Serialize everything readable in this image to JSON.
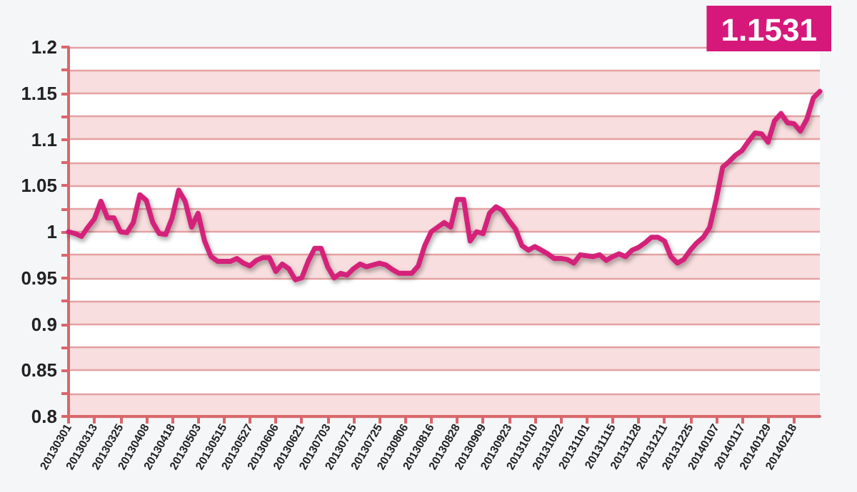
{
  "chart_data": {
    "type": "line",
    "title": "1.1531",
    "categories": [
      "20130301",
      null,
      null,
      null,
      "20130313",
      null,
      null,
      null,
      "20130325",
      null,
      null,
      null,
      "20130408",
      null,
      null,
      null,
      "20130418",
      null,
      null,
      null,
      "20130503",
      null,
      null,
      null,
      "20130515",
      null,
      null,
      null,
      "20130527",
      null,
      null,
      null,
      "20130606",
      null,
      null,
      null,
      "20130621",
      null,
      null,
      null,
      "20130703",
      null,
      null,
      null,
      "20130715",
      null,
      null,
      null,
      "20130725",
      null,
      null,
      null,
      "20130806",
      null,
      null,
      null,
      "20130816",
      null,
      null,
      null,
      "20130828",
      null,
      null,
      null,
      "20130909",
      null,
      null,
      null,
      "20130923",
      null,
      null,
      null,
      "20131010",
      null,
      null,
      null,
      "20131022",
      null,
      null,
      null,
      "20131101",
      null,
      null,
      null,
      "20131115",
      null,
      null,
      null,
      "20131128",
      null,
      null,
      null,
      "20131211",
      null,
      null,
      null,
      "20131225",
      null,
      null,
      null,
      "20140107",
      null,
      null,
      null,
      "20140117",
      null,
      null,
      null,
      "20140129",
      null,
      null,
      null,
      "20140218",
      null,
      null,
      null,
      null
    ],
    "series": [
      {
        "color": "#d4237a",
        "values": [
          1.0,
          0.998,
          0.995,
          1.005,
          1.014,
          1.033,
          1.015,
          1.015,
          1.0,
          0.999,
          1.01,
          1.04,
          1.034,
          1.01,
          0.998,
          0.997,
          1.015,
          1.045,
          1.033,
          1.005,
          1.02,
          0.99,
          0.973,
          0.968,
          0.968,
          0.968,
          0.971,
          0.966,
          0.963,
          0.969,
          0.972,
          0.972,
          0.957,
          0.965,
          0.96,
          0.948,
          0.95,
          0.968,
          0.982,
          0.982,
          0.962,
          0.95,
          0.955,
          0.953,
          0.96,
          0.965,
          0.962,
          0.964,
          0.966,
          0.964,
          0.959,
          0.955,
          0.955,
          0.955,
          0.963,
          0.985,
          1.0,
          1.005,
          1.01,
          1.005,
          1.035,
          1.035,
          0.99,
          1.0,
          0.998,
          1.02,
          1.027,
          1.023,
          1.012,
          1.003,
          0.985,
          0.98,
          0.984,
          0.98,
          0.976,
          0.971,
          0.971,
          0.97,
          0.966,
          0.975,
          0.974,
          0.973,
          0.975,
          0.969,
          0.973,
          0.976,
          0.973,
          0.98,
          0.983,
          0.988,
          0.994,
          0.994,
          0.99,
          0.973,
          0.966,
          0.97,
          0.98,
          0.988,
          0.994,
          1.005,
          1.035,
          1.07,
          1.076,
          1.083,
          1.088,
          1.098,
          1.107,
          1.106,
          1.097,
          1.12,
          1.128,
          1.118,
          1.117,
          1.109,
          1.122,
          1.145,
          1.152
        ]
      }
    ],
    "ylim": [
      0.8,
      1.2
    ],
    "yticks": [
      0.8,
      {
        "value": 0.825,
        "label": null
      },
      0.85,
      {
        "value": 0.875,
        "label": null
      },
      0.9,
      {
        "value": 0.925,
        "label": null
      },
      0.95,
      {
        "value": 0.975,
        "label": null
      },
      1,
      {
        "value": 1.025,
        "label": null
      },
      1.05,
      {
        "value": 1.075,
        "label": null
      },
      1.1,
      {
        "value": 1.125,
        "label": null
      },
      1.15,
      {
        "value": 1.175,
        "label": null
      },
      1.2
    ],
    "grid": "y",
    "marker": "none",
    "line_style": "solid"
  }
}
